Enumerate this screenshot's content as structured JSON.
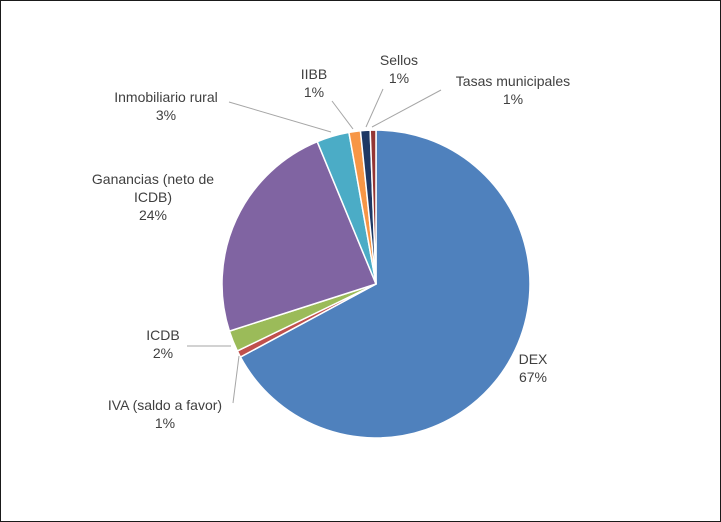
{
  "chart_data": {
    "type": "pie",
    "title": "",
    "start_angle_deg": 0,
    "direction": "clockwise",
    "slices": [
      {
        "label": [
          "DEX"
        ],
        "percent_label": "67%",
        "value": 66.8,
        "color": "#4f81bd"
      },
      {
        "label": [
          "IVA (saldo a favor)"
        ],
        "percent_label": "1%",
        "value": 0.7,
        "color": "#c0504d"
      },
      {
        "label": [
          "ICDB"
        ],
        "percent_label": "2%",
        "value": 2.2,
        "color": "#9bbb59"
      },
      {
        "label": [
          "Ganancias (neto de",
          "ICDB)"
        ],
        "percent_label": "24%",
        "value": 23.6,
        "color": "#8064a2"
      },
      {
        "label": [
          "Inmobiliario rural"
        ],
        "percent_label": "3%",
        "value": 3.4,
        "color": "#4bacc6"
      },
      {
        "label": [
          "IIBB"
        ],
        "percent_label": "1%",
        "value": 1.2,
        "color": "#f79646"
      },
      {
        "label": [
          "Sellos"
        ],
        "percent_label": "1%",
        "value": 1.0,
        "color": "#1f3864"
      },
      {
        "label": [
          "Tasas municipales"
        ],
        "percent_label": "1%",
        "value": 0.6,
        "color": "#943634"
      }
    ],
    "legend": "none",
    "data_labels": "outside with leader lines"
  }
}
